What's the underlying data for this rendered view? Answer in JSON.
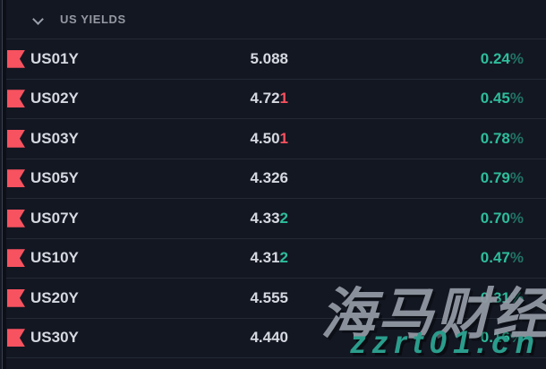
{
  "panel": {
    "header": {
      "title": "US YIELDS"
    }
  },
  "units": {
    "percent": "%"
  },
  "colors": {
    "background": "#131722",
    "up": "#2ebd9c",
    "down": "#f7525f",
    "flag": "#f7525f",
    "text": "#d6d9e0",
    "header_text": "#9598a1",
    "separator": "#242a35"
  },
  "rows": [
    {
      "symbol": "US01Y",
      "value_main": "5.088",
      "value_last": "",
      "last_dir": "none",
      "change": "0.24"
    },
    {
      "symbol": "US02Y",
      "value_main": "4.72",
      "value_last": "1",
      "last_dir": "down",
      "change": "0.45"
    },
    {
      "symbol": "US03Y",
      "value_main": "4.50",
      "value_last": "1",
      "last_dir": "down",
      "change": "0.78"
    },
    {
      "symbol": "US05Y",
      "value_main": "4.326",
      "value_last": "",
      "last_dir": "none",
      "change": "0.79"
    },
    {
      "symbol": "US07Y",
      "value_main": "4.33",
      "value_last": "2",
      "last_dir": "up",
      "change": "0.70"
    },
    {
      "symbol": "US10Y",
      "value_main": "4.31",
      "value_last": "2",
      "last_dir": "up",
      "change": "0.47"
    },
    {
      "symbol": "US20Y",
      "value_main": "4.555",
      "value_last": "",
      "last_dir": "none",
      "change": "0.31"
    },
    {
      "symbol": "US30Y",
      "value_main": "4.440",
      "value_last": "",
      "last_dir": "none",
      "change": "0.16"
    }
  ],
  "watermark": {
    "line1": "海马财经",
    "line2": "zzrt01.cn"
  }
}
